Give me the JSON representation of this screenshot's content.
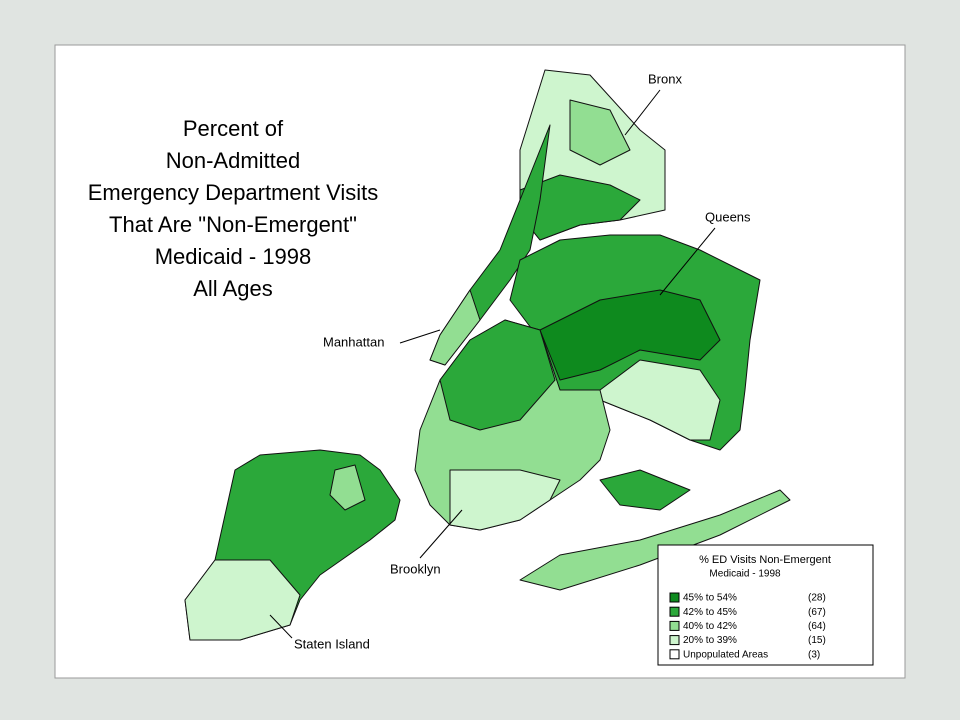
{
  "header": {
    "title_lines": [
      "Percent of",
      "Non-Admitted",
      "Emergency Department Visits",
      "That Are \"Non-Emergent\"",
      "Medicaid - 1998",
      "All Ages"
    ]
  },
  "labels": {
    "bronx": "Bronx",
    "queens": "Queens",
    "manhattan": "Manhattan",
    "brooklyn": "Brooklyn",
    "staten_island": "Staten Island"
  },
  "legend": {
    "title": "% ED Visits Non-Emergent",
    "subtitle": "Medicaid - 1998",
    "items": [
      {
        "label": "45% to 54%",
        "count": "(28)",
        "color": "#0e8a1e"
      },
      {
        "label": "42% to 45%",
        "count": "(67)",
        "color": "#2ba83a"
      },
      {
        "label": "40% to 42%",
        "count": "(64)",
        "color": "#92de92"
      },
      {
        "label": "20% to 39%",
        "count": "(15)",
        "color": "#cef5ce"
      },
      {
        "label": "Unpopulated Areas",
        "count": "(3)",
        "color": "#ffffff"
      }
    ]
  }
}
